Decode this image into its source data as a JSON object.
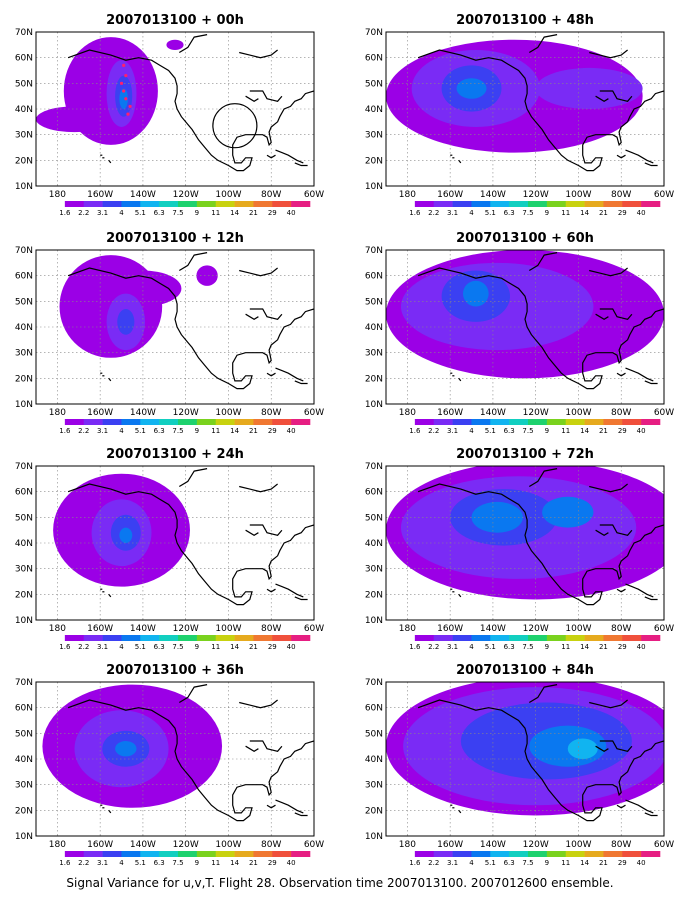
{
  "footer": "Signal Variance for u,v,T. Flight 28. Observation time 2007013100. 2007012600 ensemble.",
  "lat_labels": [
    "70N",
    "60N",
    "50N",
    "40N",
    "30N",
    "20N",
    "10N"
  ],
  "lon_labels": [
    "180",
    "160W",
    "140W",
    "120W",
    "100W",
    "80W",
    "60W"
  ],
  "colorbar": {
    "labels": [
      "1.6",
      "2.2",
      "3.1",
      "4",
      "5.1",
      "6.3",
      "7.5",
      "9",
      "11",
      "14",
      "21",
      "29",
      "40"
    ],
    "colors": [
      "#9b00e6",
      "#7a2bf5",
      "#3b40f2",
      "#0a78f0",
      "#11b4f0",
      "#12cfc0",
      "#1ed26e",
      "#7ad21e",
      "#c8d20f",
      "#e6aa1e",
      "#f07832",
      "#f0503c",
      "#e61e82"
    ]
  },
  "panels": [
    {
      "title": "2007013100 + 00h",
      "blobs": [
        {
          "lon": 205,
          "lat": 47,
          "rx": 22,
          "ry": 21,
          "lvl": 0
        },
        {
          "lon": 188,
          "lat": 36,
          "rx": 18,
          "ry": 5,
          "lvl": 0
        },
        {
          "lon": 210,
          "lat": 46,
          "rx": 7,
          "ry": 13,
          "lvl": 1
        },
        {
          "lon": 211,
          "lat": 45,
          "rx": 4,
          "ry": 8,
          "lvl": 2
        },
        {
          "lon": 211,
          "lat": 44,
          "rx": 2,
          "ry": 4,
          "lvl": 3
        },
        {
          "lon": 235,
          "lat": 65,
          "rx": 4,
          "ry": 2,
          "lvl": 0
        }
      ]
    },
    {
      "title": "2007013100 + 48h",
      "blobs": [
        {
          "lon": 230,
          "lat": 45,
          "rx": 60,
          "ry": 22,
          "lvl": 0
        },
        {
          "lon": 212,
          "lat": 48,
          "rx": 30,
          "ry": 15,
          "lvl": 1
        },
        {
          "lon": 210,
          "lat": 48,
          "rx": 14,
          "ry": 9,
          "lvl": 2
        },
        {
          "lon": 210,
          "lat": 48,
          "rx": 7,
          "ry": 4,
          "lvl": 3
        },
        {
          "lon": 265,
          "lat": 48,
          "rx": 25,
          "ry": 8,
          "lvl": 1
        }
      ]
    },
    {
      "title": "2007013100 + 12h",
      "blobs": [
        {
          "lon": 205,
          "lat": 48,
          "rx": 24,
          "ry": 20,
          "lvl": 0
        },
        {
          "lon": 220,
          "lat": 55,
          "rx": 18,
          "ry": 7,
          "lvl": 0
        },
        {
          "lon": 212,
          "lat": 42,
          "rx": 9,
          "ry": 11,
          "lvl": 1
        },
        {
          "lon": 212,
          "lat": 42,
          "rx": 4,
          "ry": 5,
          "lvl": 2
        },
        {
          "lon": 250,
          "lat": 60,
          "rx": 5,
          "ry": 4,
          "lvl": 0
        }
      ]
    },
    {
      "title": "2007013100 + 60h",
      "blobs": [
        {
          "lon": 235,
          "lat": 45,
          "rx": 65,
          "ry": 25,
          "lvl": 0
        },
        {
          "lon": 222,
          "lat": 48,
          "rx": 45,
          "ry": 17,
          "lvl": 1
        },
        {
          "lon": 212,
          "lat": 52,
          "rx": 16,
          "ry": 10,
          "lvl": 2
        },
        {
          "lon": 212,
          "lat": 53,
          "rx": 6,
          "ry": 5,
          "lvl": 3
        }
      ]
    },
    {
      "title": "2007013100 + 24h",
      "blobs": [
        {
          "lon": 210,
          "lat": 45,
          "rx": 32,
          "ry": 22,
          "lvl": 0
        },
        {
          "lon": 210,
          "lat": 44,
          "rx": 14,
          "ry": 13,
          "lvl": 1
        },
        {
          "lon": 212,
          "lat": 44,
          "rx": 7,
          "ry": 7,
          "lvl": 2
        },
        {
          "lon": 212,
          "lat": 43,
          "rx": 3,
          "ry": 3,
          "lvl": 3
        }
      ]
    },
    {
      "title": "2007013100 + 72h",
      "blobs": [
        {
          "lon": 240,
          "lat": 45,
          "rx": 70,
          "ry": 27,
          "lvl": 0
        },
        {
          "lon": 232,
          "lat": 46,
          "rx": 55,
          "ry": 20,
          "lvl": 1
        },
        {
          "lon": 225,
          "lat": 50,
          "rx": 25,
          "ry": 11,
          "lvl": 2
        },
        {
          "lon": 222,
          "lat": 50,
          "rx": 12,
          "ry": 6,
          "lvl": 3
        },
        {
          "lon": 255,
          "lat": 52,
          "rx": 12,
          "ry": 6,
          "lvl": 3
        }
      ]
    },
    {
      "title": "2007013100 + 36h",
      "blobs": [
        {
          "lon": 215,
          "lat": 45,
          "rx": 42,
          "ry": 24,
          "lvl": 0
        },
        {
          "lon": 210,
          "lat": 44,
          "rx": 22,
          "ry": 15,
          "lvl": 1
        },
        {
          "lon": 212,
          "lat": 44,
          "rx": 11,
          "ry": 7,
          "lvl": 2
        },
        {
          "lon": 212,
          "lat": 44,
          "rx": 5,
          "ry": 3,
          "lvl": 3
        }
      ]
    },
    {
      "title": "2007013100 + 84h",
      "blobs": [
        {
          "lon": 240,
          "lat": 45,
          "rx": 70,
          "ry": 27,
          "lvl": 0
        },
        {
          "lon": 240,
          "lat": 45,
          "rx": 62,
          "ry": 23,
          "lvl": 1
        },
        {
          "lon": 245,
          "lat": 47,
          "rx": 40,
          "ry": 15,
          "lvl": 2
        },
        {
          "lon": 255,
          "lat": 45,
          "rx": 18,
          "ry": 8,
          "lvl": 3
        },
        {
          "lon": 262,
          "lat": 44,
          "rx": 7,
          "ry": 4,
          "lvl": 4
        }
      ]
    }
  ]
}
